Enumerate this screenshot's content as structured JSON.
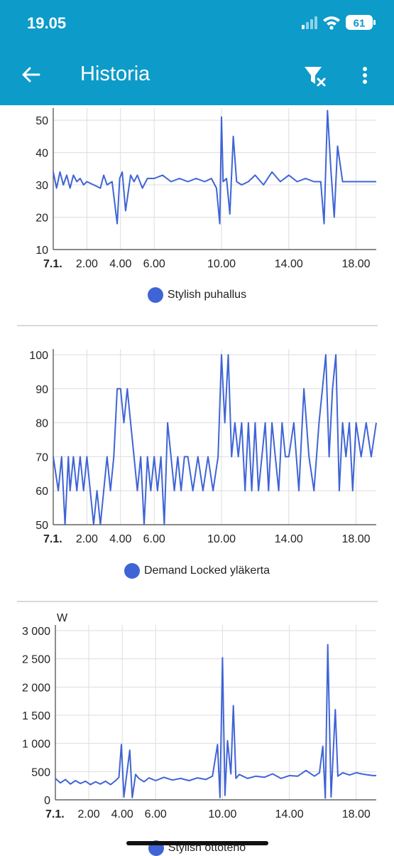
{
  "status_bar": {
    "time": "19.05",
    "battery": "61"
  },
  "header": {
    "title": "Historia",
    "back_icon": "arrow-back-icon",
    "filter_icon": "filter-clear-icon",
    "more_icon": "more-vert-icon"
  },
  "colors": {
    "appbar": "#0d9bc9",
    "series": "#3f64d6",
    "grid": "#dddddd"
  },
  "chart_data": [
    {
      "type": "line",
      "title": "",
      "xlabel": "",
      "ylabel": "",
      "xlim": [
        0,
        19.2
      ],
      "ylim": [
        10,
        52
      ],
      "y_ticks": [
        10,
        20,
        30,
        40,
        50
      ],
      "y_tick_labels": [
        "10",
        "20",
        "30",
        "40",
        "50"
      ],
      "x_ticks": [
        0,
        2,
        4,
        6,
        10,
        14,
        18
      ],
      "x_tick_labels": [
        "7.1.",
        "2.00",
        "4.00",
        "6.00",
        "10.00",
        "14.00",
        "18.00"
      ],
      "grid": true,
      "legend_position": "bottom",
      "series": [
        {
          "name": "Stylish puhallus",
          "x": [
            0,
            0.2,
            0.4,
            0.6,
            0.8,
            1.0,
            1.2,
            1.4,
            1.6,
            1.8,
            2.0,
            2.4,
            2.8,
            3.0,
            3.2,
            3.5,
            3.8,
            3.95,
            4.1,
            4.3,
            4.6,
            4.8,
            5.0,
            5.3,
            5.6,
            6.0,
            6.5,
            7.0,
            7.5,
            8.0,
            8.5,
            9.0,
            9.4,
            9.7,
            9.9,
            10.0,
            10.1,
            10.3,
            10.5,
            10.7,
            10.9,
            11.2,
            11.6,
            12.0,
            12.5,
            13.0,
            13.5,
            14.0,
            14.5,
            15.0,
            15.5,
            15.9,
            16.1,
            16.3,
            16.5,
            16.7,
            16.9,
            17.2,
            17.6,
            18.0,
            18.5,
            19.0,
            19.2
          ],
          "values": [
            34,
            29,
            34,
            30,
            33,
            29,
            33,
            31,
            32,
            30,
            31,
            30,
            29,
            33,
            30,
            31,
            18,
            32,
            34,
            22,
            33,
            31,
            33,
            29,
            32,
            32,
            33,
            31,
            32,
            31,
            32,
            31,
            32,
            29,
            18,
            51,
            31,
            32,
            21,
            45,
            31,
            30,
            31,
            33,
            30,
            34,
            31,
            33,
            31,
            32,
            31,
            31,
            18,
            53,
            35,
            20,
            42,
            31,
            31,
            31,
            31,
            31,
            31
          ]
        }
      ]
    },
    {
      "type": "line",
      "title": "",
      "xlabel": "",
      "ylabel": "",
      "xlim": [
        0,
        19.2
      ],
      "ylim": [
        50,
        100
      ],
      "y_ticks": [
        50,
        60,
        70,
        80,
        90,
        100
      ],
      "y_tick_labels": [
        "50",
        "60",
        "70",
        "80",
        "90",
        "100"
      ],
      "x_ticks": [
        0,
        2,
        4,
        6,
        10,
        14,
        18
      ],
      "x_tick_labels": [
        "7.1.",
        "2.00",
        "4.00",
        "6.00",
        "10.00",
        "14.00",
        "18.00"
      ],
      "grid": true,
      "legend_position": "bottom",
      "series": [
        {
          "name": "Demand Locked yläkerta",
          "x": [
            0,
            0.3,
            0.5,
            0.7,
            0.9,
            1.0,
            1.2,
            1.4,
            1.6,
            1.8,
            2.0,
            2.2,
            2.4,
            2.6,
            2.8,
            3.0,
            3.2,
            3.4,
            3.6,
            3.8,
            4.0,
            4.2,
            4.4,
            4.6,
            4.8,
            5.0,
            5.2,
            5.4,
            5.6,
            5.8,
            6.0,
            6.2,
            6.4,
            6.6,
            6.8,
            7.0,
            7.2,
            7.4,
            7.6,
            7.8,
            8.0,
            8.3,
            8.6,
            8.9,
            9.2,
            9.5,
            9.8,
            10.0,
            10.2,
            10.4,
            10.6,
            10.8,
            11.0,
            11.2,
            11.4,
            11.6,
            11.8,
            12.0,
            12.2,
            12.4,
            12.6,
            12.8,
            13.0,
            13.2,
            13.4,
            13.6,
            13.8,
            14.0,
            14.3,
            14.6,
            14.9,
            15.2,
            15.5,
            15.8,
            16.0,
            16.2,
            16.4,
            16.6,
            16.8,
            17.0,
            17.2,
            17.4,
            17.6,
            17.8,
            18.0,
            18.3,
            18.6,
            18.9,
            19.2
          ],
          "values": [
            70,
            60,
            70,
            50,
            70,
            60,
            70,
            60,
            70,
            60,
            70,
            60,
            50,
            60,
            50,
            60,
            70,
            60,
            70,
            90,
            90,
            80,
            90,
            80,
            70,
            60,
            70,
            50,
            70,
            60,
            70,
            60,
            70,
            50,
            80,
            70,
            60,
            70,
            60,
            70,
            70,
            60,
            70,
            60,
            70,
            60,
            70,
            100,
            80,
            100,
            70,
            80,
            70,
            80,
            60,
            80,
            60,
            80,
            60,
            70,
            80,
            60,
            80,
            70,
            60,
            80,
            70,
            70,
            80,
            60,
            90,
            70,
            60,
            80,
            90,
            100,
            70,
            90,
            100,
            60,
            80,
            70,
            80,
            60,
            80,
            70,
            80,
            70,
            80
          ]
        }
      ]
    },
    {
      "type": "line",
      "title": "",
      "xlabel": "",
      "ylabel": "W",
      "xlim": [
        0,
        19.2
      ],
      "ylim": [
        0,
        3000
      ],
      "y_ticks": [
        0,
        500,
        1000,
        1500,
        2000,
        2500,
        3000
      ],
      "y_tick_labels": [
        "0",
        "500",
        "1 000",
        "1 500",
        "2 000",
        "2 500",
        "3 000"
      ],
      "x_ticks": [
        0,
        2,
        4,
        6,
        10,
        14,
        18
      ],
      "x_tick_labels": [
        "7.1.",
        "2.00",
        "4.00",
        "6.00",
        "10.00",
        "14.00",
        "18.00"
      ],
      "grid": true,
      "legend_position": "bottom",
      "series": [
        {
          "name": "Stylish ottoteho",
          "x": [
            0,
            0.3,
            0.6,
            0.9,
            1.2,
            1.5,
            1.8,
            2.1,
            2.4,
            2.7,
            3.0,
            3.3,
            3.6,
            3.8,
            3.95,
            4.1,
            4.3,
            4.45,
            4.6,
            4.8,
            5.0,
            5.3,
            5.6,
            6.0,
            6.5,
            7.0,
            7.5,
            8.0,
            8.5,
            9.0,
            9.4,
            9.7,
            9.85,
            10.0,
            10.15,
            10.3,
            10.5,
            10.65,
            10.8,
            11.0,
            11.5,
            12.0,
            12.5,
            13.0,
            13.5,
            14.0,
            14.5,
            15.0,
            15.5,
            15.8,
            16.0,
            16.15,
            16.3,
            16.5,
            16.75,
            16.9,
            17.2,
            17.6,
            18.0,
            18.5,
            19.0,
            19.2
          ],
          "values": [
            380,
            300,
            360,
            280,
            340,
            290,
            330,
            270,
            320,
            280,
            330,
            270,
            340,
            400,
            980,
            50,
            520,
            880,
            40,
            450,
            380,
            320,
            390,
            340,
            400,
            350,
            380,
            340,
            390,
            360,
            420,
            980,
            40,
            2520,
            80,
            1050,
            460,
            1670,
            380,
            450,
            380,
            420,
            400,
            460,
            380,
            430,
            420,
            520,
            420,
            480,
            950,
            30,
            2750,
            50,
            1600,
            420,
            480,
            440,
            480,
            450,
            430,
            430
          ]
        }
      ]
    }
  ],
  "legends": [
    "Stylish puhallus",
    "Demand Locked yläkerta",
    "Stylish ottoteho"
  ]
}
